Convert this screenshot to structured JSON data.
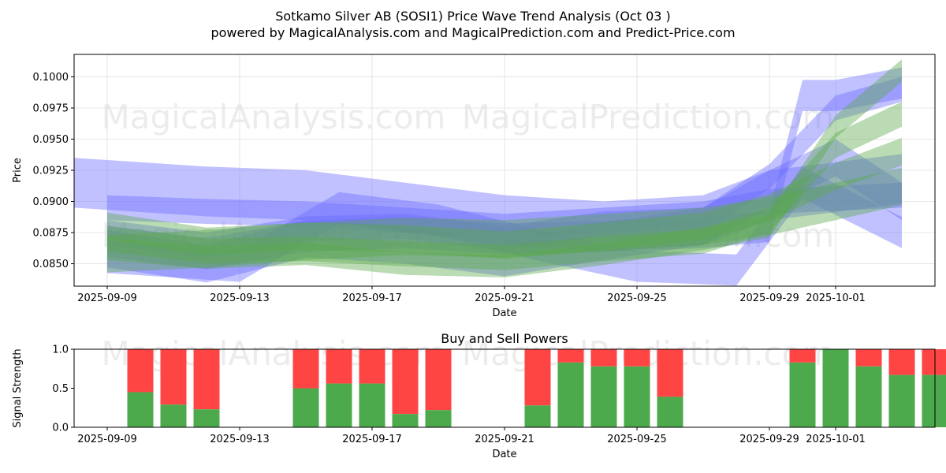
{
  "header": {
    "title": "Sotkamo Silver AB (SOSI1) Price Wave Trend Analysis (Oct 03 )",
    "subtitle": "powered by MagicalAnalysis.com and MagicalPrediction.com and Predict-Price.com"
  },
  "watermarks": [
    "MagicalAnalysis.com",
    "MagicalPrediction.com"
  ],
  "colors": {
    "blue_band": "#6b6bff",
    "green_band": "#5aaa4a",
    "buy": "#4caa4c",
    "sell": "#ff4444",
    "grid": "#e0e0e0"
  },
  "chart_data": [
    {
      "type": "area",
      "title": "",
      "xlabel": "Date",
      "ylabel": "Price",
      "xlim": [
        "2025-09-08",
        "2025-10-04"
      ],
      "ylim": [
        0.0832,
        0.1018
      ],
      "x_ticks": [
        "2025-09-09",
        "2025-09-13",
        "2025-09-17",
        "2025-09-21",
        "2025-09-25",
        "2025-09-29",
        "2025-10-01"
      ],
      "y_ticks": [
        0.085,
        0.0875,
        0.09,
        0.0925,
        0.095,
        0.0975,
        0.1
      ],
      "y_tick_labels": [
        "0.0850",
        "0.0875",
        "0.0900",
        "0.0925",
        "0.0950",
        "0.0975",
        "0.1000"
      ],
      "grid": true,
      "series": [
        {
          "color": "blue",
          "x": [
            "2025-09-08",
            "2025-09-12",
            "2025-09-15",
            "2025-09-18",
            "2025-09-21",
            "2025-09-24",
            "2025-09-27",
            "2025-09-29",
            "2025-10-03"
          ],
          "values": [
            0.0915,
            0.0908,
            0.0905,
            0.0895,
            0.0885,
            0.088,
            0.0885,
            0.0905,
            0.0918
          ],
          "width": 0.004
        },
        {
          "color": "blue",
          "x": [
            "2025-09-09",
            "2025-09-12",
            "2025-09-15",
            "2025-09-18",
            "2025-09-21",
            "2025-09-24",
            "2025-09-27",
            "2025-09-29",
            "2025-10-03"
          ],
          "values": [
            0.0895,
            0.0892,
            0.089,
            0.0885,
            0.088,
            0.0885,
            0.089,
            0.09,
            0.0905
          ],
          "width": 0.002
        },
        {
          "color": "blue",
          "x": [
            "2025-09-09",
            "2025-09-12",
            "2025-09-15",
            "2025-09-18",
            "2025-09-21",
            "2025-09-24",
            "2025-09-27",
            "2025-09-29",
            "2025-10-01",
            "2025-10-03"
          ],
          "values": [
            0.0862,
            0.085,
            0.087,
            0.0865,
            0.0855,
            0.0868,
            0.088,
            0.091,
            0.0935,
            0.09
          ],
          "width": 0.003
        },
        {
          "color": "blue",
          "x": [
            "2025-09-09",
            "2025-09-12",
            "2025-09-15",
            "2025-09-18",
            "2025-09-21",
            "2025-09-24",
            "2025-09-27",
            "2025-09-29",
            "2025-09-30",
            "2025-10-01",
            "2025-10-03"
          ],
          "values": [
            0.0868,
            0.0858,
            0.0872,
            0.0875,
            0.087,
            0.0872,
            0.0875,
            0.088,
            0.0985,
            0.0985,
            0.0995
          ],
          "width": 0.0025
        },
        {
          "color": "blue",
          "x": [
            "2025-09-09",
            "2025-09-12",
            "2025-09-15",
            "2025-09-18",
            "2025-09-21",
            "2025-09-24",
            "2025-09-27",
            "2025-09-29",
            "2025-10-01",
            "2025-10-03"
          ],
          "values": [
            0.0875,
            0.0865,
            0.0878,
            0.088,
            0.087,
            0.0882,
            0.0885,
            0.092,
            0.0975,
            0.099
          ],
          "width": 0.002
        },
        {
          "color": "blue",
          "x": [
            "2025-09-09",
            "2025-09-13",
            "2025-09-16",
            "2025-09-19",
            "2025-09-22",
            "2025-09-25",
            "2025-09-28",
            "2025-09-30",
            "2025-10-03"
          ],
          "values": [
            0.0855,
            0.0848,
            0.0895,
            0.0885,
            0.0865,
            0.0848,
            0.0845,
            0.0915,
            0.0875
          ],
          "width": 0.0025
        },
        {
          "color": "green",
          "x": [
            "2025-09-09",
            "2025-09-12",
            "2025-09-15",
            "2025-09-18",
            "2025-09-21",
            "2025-09-24",
            "2025-09-27",
            "2025-09-29",
            "2025-10-01",
            "2025-10-03"
          ],
          "values": [
            0.088,
            0.0868,
            0.0872,
            0.087,
            0.0865,
            0.0872,
            0.088,
            0.0895,
            0.092,
            0.094
          ],
          "width": 0.0022
        },
        {
          "color": "green",
          "x": [
            "2025-09-09",
            "2025-09-12",
            "2025-09-15",
            "2025-09-18",
            "2025-09-21",
            "2025-09-24",
            "2025-09-27",
            "2025-09-29",
            "2025-10-01",
            "2025-10-03"
          ],
          "values": [
            0.087,
            0.086,
            0.0862,
            0.0858,
            0.0855,
            0.0862,
            0.0868,
            0.0885,
            0.0945,
            0.097
          ],
          "width": 0.002
        },
        {
          "color": "green",
          "x": [
            "2025-09-09",
            "2025-09-12",
            "2025-09-15",
            "2025-09-18",
            "2025-09-21",
            "2025-09-24",
            "2025-09-27",
            "2025-09-29",
            "2025-10-01",
            "2025-10-03"
          ],
          "values": [
            0.0862,
            0.0855,
            0.0858,
            0.085,
            0.0848,
            0.0858,
            0.087,
            0.088,
            0.096,
            0.1005
          ],
          "width": 0.0018
        },
        {
          "color": "green",
          "x": [
            "2025-09-09",
            "2025-09-12",
            "2025-09-15",
            "2025-09-18",
            "2025-09-21",
            "2025-09-24",
            "2025-09-27",
            "2025-09-29",
            "2025-10-01",
            "2025-10-03"
          ],
          "values": [
            0.0858,
            0.0862,
            0.0868,
            0.0872,
            0.087,
            0.0875,
            0.088,
            0.0888,
            0.09,
            0.0912
          ],
          "width": 0.003
        }
      ]
    },
    {
      "type": "bar",
      "title": "Buy and Sell Powers",
      "xlabel": "Date",
      "ylabel": "Signal Strength",
      "xlim": [
        "2025-09-08",
        "2025-10-04"
      ],
      "ylim": [
        0.0,
        1.0
      ],
      "x_ticks": [
        "2025-09-09",
        "2025-09-13",
        "2025-09-17",
        "2025-09-21",
        "2025-09-25",
        "2025-09-29",
        "2025-10-01"
      ],
      "y_ticks": [
        0.0,
        0.5,
        1.0
      ],
      "y_tick_labels": [
        "0.0",
        "0.5",
        "1.0"
      ],
      "grid": false,
      "categories": [
        "2025-09-10",
        "2025-09-11",
        "2025-09-12",
        "2025-09-15",
        "2025-09-16",
        "2025-09-17",
        "2025-09-18",
        "2025-09-19",
        "2025-09-22",
        "2025-09-23",
        "2025-09-24",
        "2025-09-25",
        "2025-09-26",
        "2025-09-30",
        "2025-10-01",
        "2025-10-02",
        "2025-10-03",
        "2025-10-04"
      ],
      "series": [
        {
          "name": "Buy",
          "values": [
            0.45,
            0.29,
            0.23,
            0.5,
            0.56,
            0.56,
            0.17,
            0.22,
            0.28,
            0.83,
            0.78,
            0.78,
            0.39,
            0.83,
            1.0,
            0.78,
            0.67,
            0.67
          ]
        },
        {
          "name": "Sell",
          "values": [
            0.55,
            0.71,
            0.77,
            0.5,
            0.44,
            0.44,
            0.83,
            0.78,
            0.72,
            0.17,
            0.22,
            0.22,
            0.61,
            0.17,
            0.0,
            0.22,
            0.33,
            0.33
          ]
        }
      ]
    }
  ]
}
